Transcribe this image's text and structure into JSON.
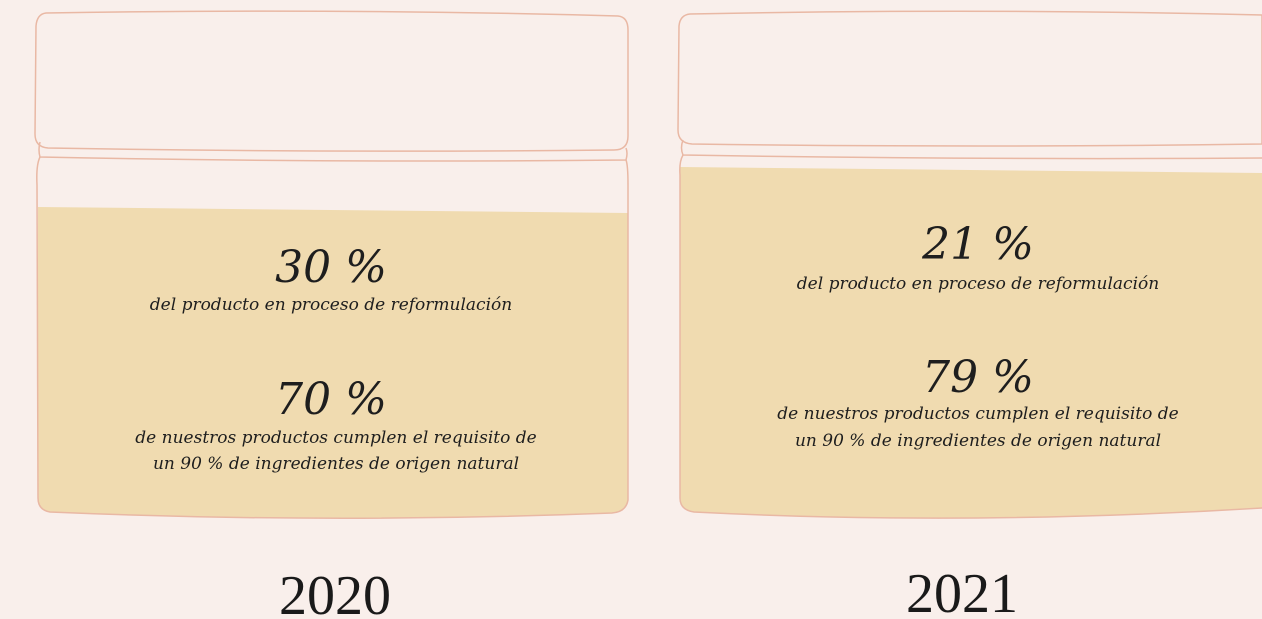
{
  "jars": [
    {
      "year": "2020",
      "items": [
        {
          "value": "30 %",
          "lines": [
            "del producto en proceso de reformulación"
          ]
        },
        {
          "value": "70 %",
          "lines": [
            "de nuestros productos cumplen el requisito de",
            "un 90 % de ingredientes de origen natural"
          ]
        }
      ]
    },
    {
      "year": "2021",
      "items": [
        {
          "value": "21 %",
          "lines": [
            "del producto en proceso de reformulación"
          ]
        },
        {
          "value": "79 %",
          "lines": [
            "de nuestros productos cumplen el requisito de",
            "un 90 % de ingredientes de origen natural"
          ]
        }
      ]
    }
  ]
}
